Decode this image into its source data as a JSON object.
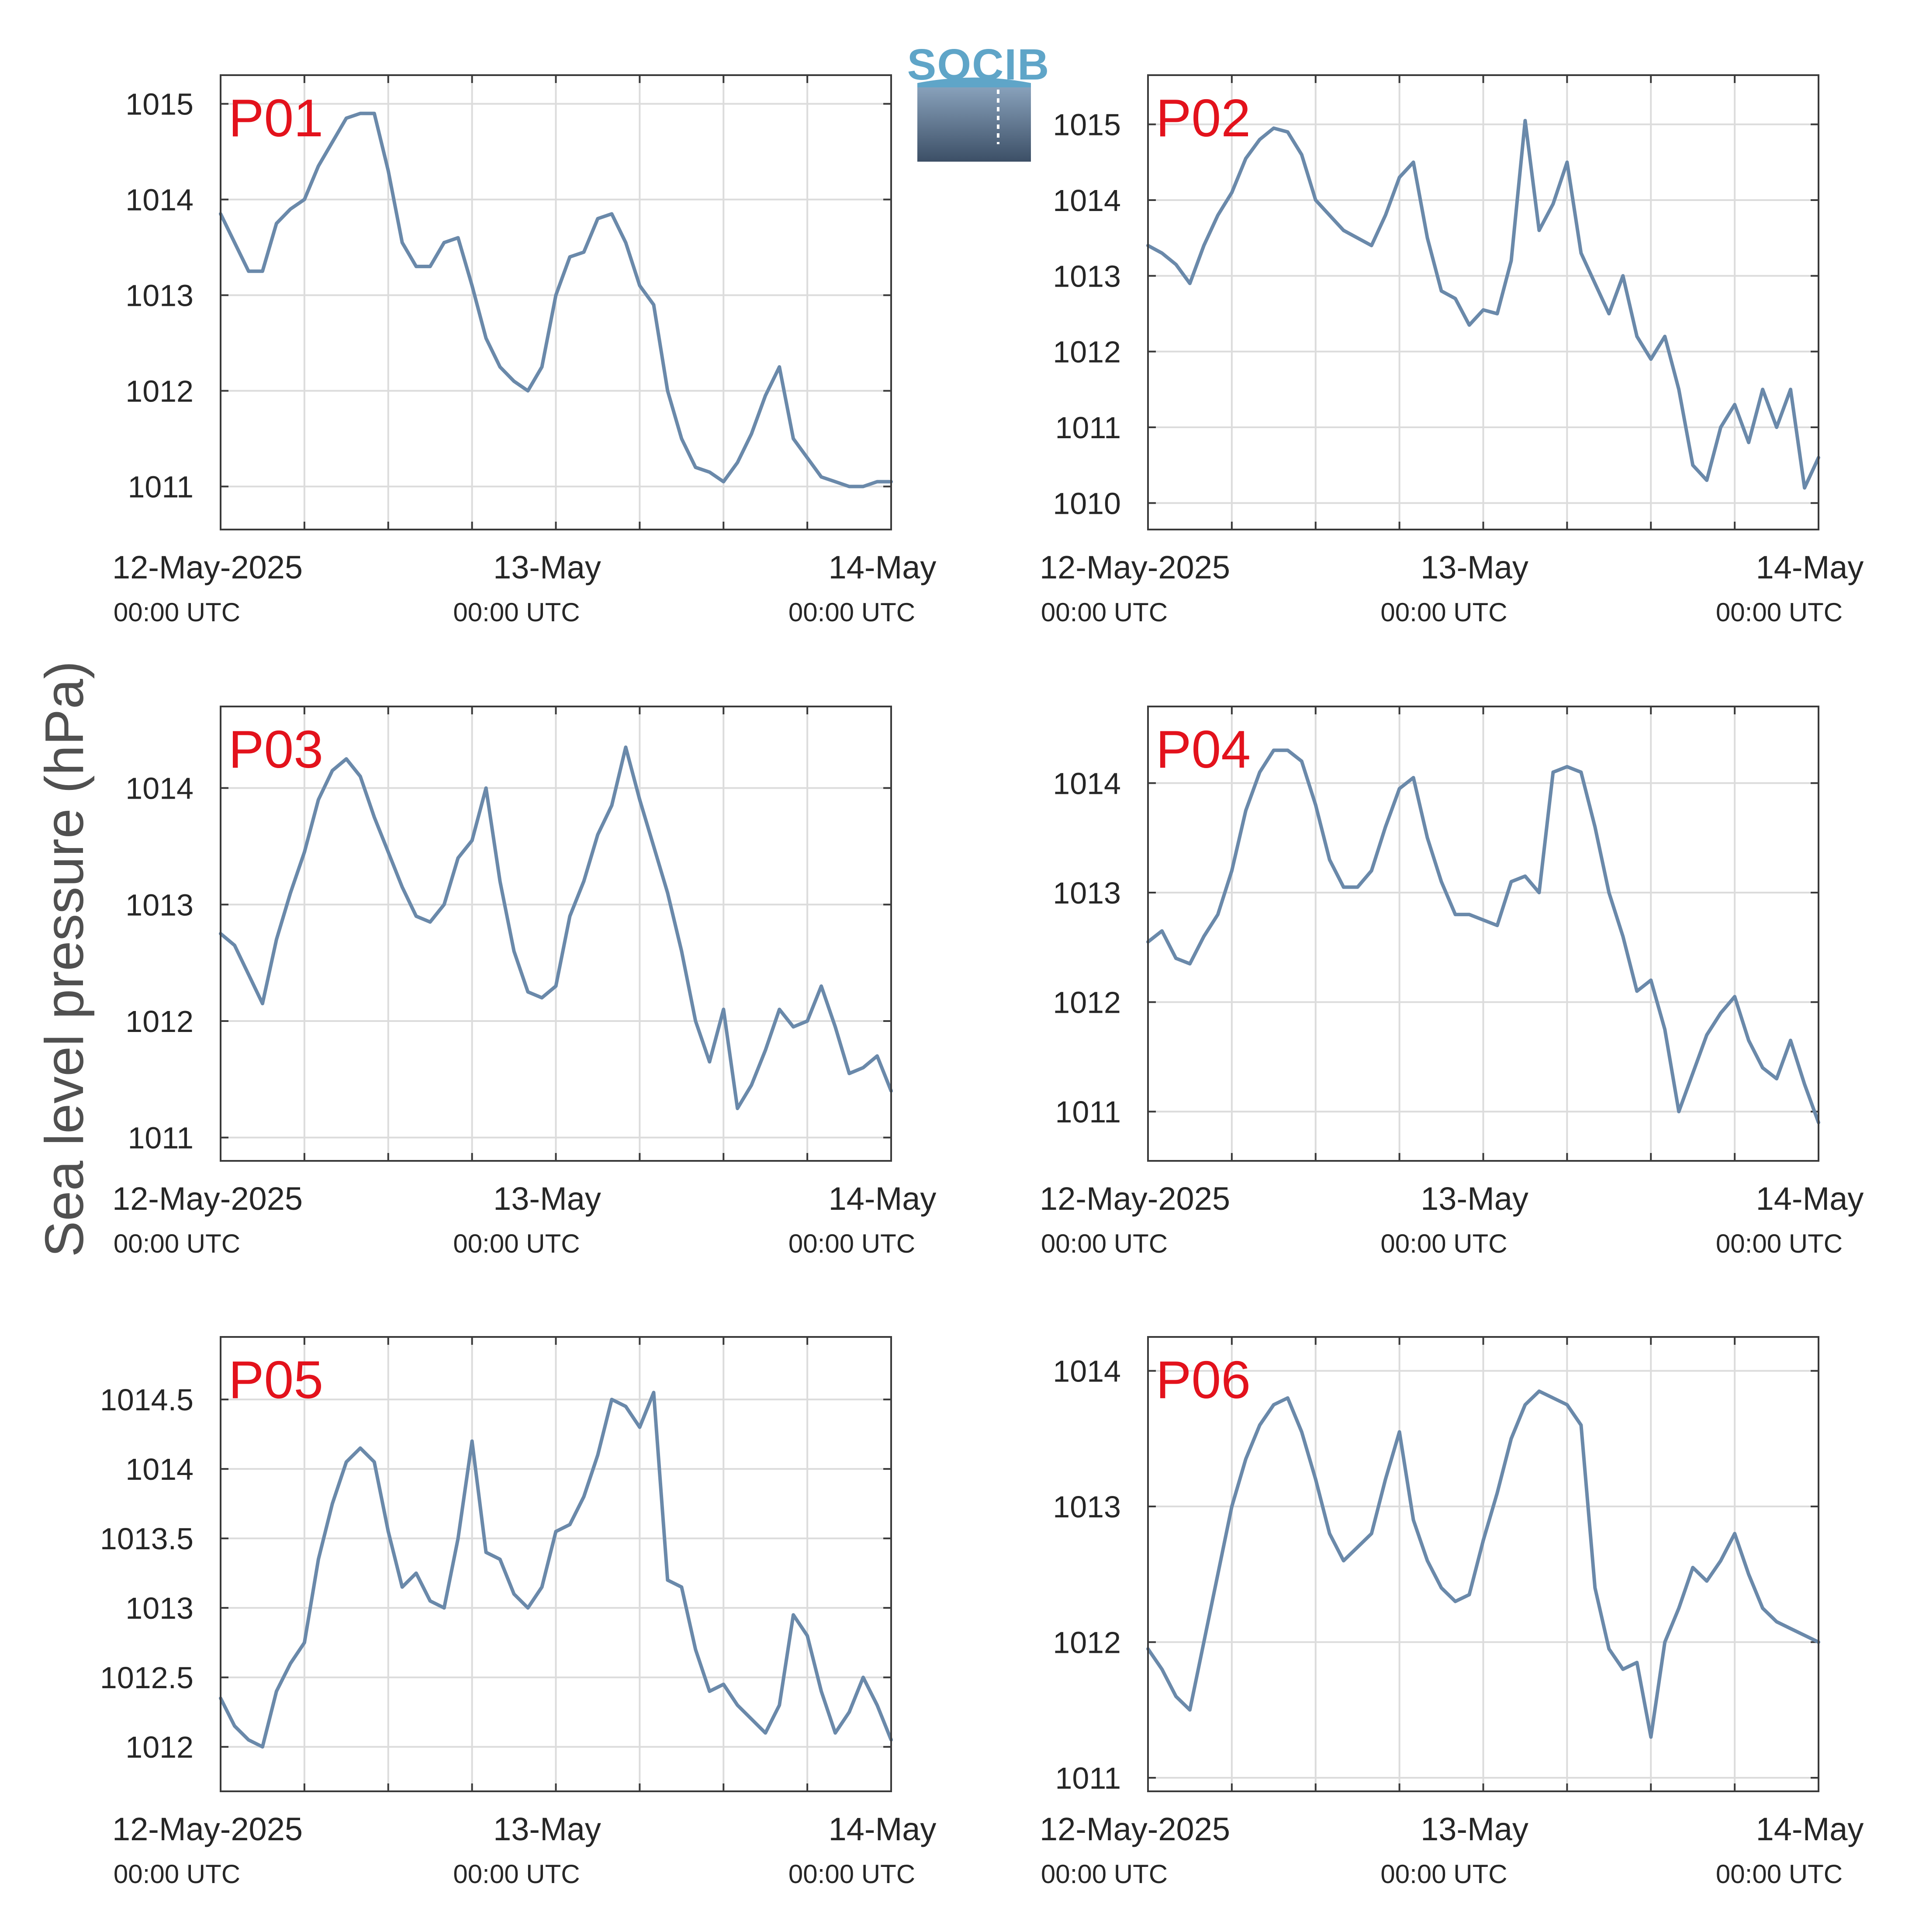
{
  "logo": {
    "text": "SOCIB"
  },
  "y_axis_label": "Sea level pressure (hPa)",
  "x_axis": {
    "tick_labels": [
      "12-May-2025",
      "13-May",
      "14-May"
    ],
    "tick_sublabels": [
      "00:00 UTC",
      "00:00 UTC",
      "00:00 UTC"
    ]
  },
  "colors": {
    "line": "#6a89aa",
    "panel_label": "#e3121c",
    "grid": "#dcdcdc",
    "axes": "#3a3a3a"
  },
  "chart_data": [
    {
      "type": "line",
      "panel_label": "P01",
      "xlim": [
        "12-May-2025 00:00 UTC",
        "14-May-2025 00:00 UTC"
      ],
      "ylim": [
        1010.55,
        1015.3
      ],
      "yticks": [
        1011,
        1012,
        1013,
        1014,
        1015
      ],
      "ytick_labels": [
        "1011",
        "1012",
        "1013",
        "1014",
        "1015"
      ],
      "grid": true,
      "series": [
        {
          "x_hours": [
            0,
            1,
            2,
            3,
            4,
            5,
            6,
            7,
            8,
            9,
            10,
            11,
            12,
            13,
            14,
            15,
            16,
            17,
            18,
            19,
            20,
            21,
            22,
            23,
            24,
            25,
            26,
            27,
            28,
            29,
            30,
            31,
            32,
            33,
            34,
            35,
            36,
            37,
            38,
            39,
            40,
            41,
            42,
            43,
            44,
            45,
            46,
            47,
            48
          ],
          "values": [
            1013.85,
            1013.55,
            1013.25,
            1013.25,
            1013.75,
            1013.9,
            1014.0,
            1014.35,
            1014.6,
            1014.85,
            1014.9,
            1014.9,
            1014.3,
            1013.55,
            1013.3,
            1013.3,
            1013.55,
            1013.6,
            1013.1,
            1012.55,
            1012.25,
            1012.1,
            1012.0,
            1012.25,
            1013.0,
            1013.4,
            1013.45,
            1013.8,
            1013.85,
            1013.55,
            1013.1,
            1012.9,
            1012.0,
            1011.5,
            1011.2,
            1011.15,
            1011.05,
            1011.25,
            1011.55,
            1011.95,
            1012.25,
            1011.5,
            1011.3,
            1011.1,
            1011.05,
            1011.0,
            1011.0,
            1011.05,
            1011.05
          ]
        }
      ]
    },
    {
      "type": "line",
      "panel_label": "P02",
      "xlim": [
        "12-May-2025 00:00 UTC",
        "14-May-2025 00:00 UTC"
      ],
      "ylim": [
        1009.65,
        1015.65
      ],
      "yticks": [
        1010,
        1011,
        1012,
        1013,
        1014,
        1015
      ],
      "ytick_labels": [
        "1010",
        "1011",
        "1012",
        "1013",
        "1014",
        "1015"
      ],
      "grid": true,
      "series": [
        {
          "x_hours": [
            0,
            1,
            2,
            3,
            4,
            5,
            6,
            7,
            8,
            9,
            10,
            11,
            12,
            13,
            14,
            15,
            16,
            17,
            18,
            19,
            20,
            21,
            22,
            23,
            24,
            25,
            26,
            27,
            28,
            29,
            30,
            31,
            32,
            33,
            34,
            35,
            36,
            37,
            38,
            39,
            40,
            41,
            42,
            43,
            44,
            45,
            46,
            47,
            48
          ],
          "values": [
            1013.4,
            1013.3,
            1013.15,
            1012.9,
            1013.4,
            1013.8,
            1014.1,
            1014.55,
            1014.8,
            1014.95,
            1014.9,
            1014.6,
            1014.0,
            1013.8,
            1013.6,
            1013.5,
            1013.4,
            1013.8,
            1014.3,
            1014.5,
            1013.5,
            1012.8,
            1012.7,
            1012.35,
            1012.55,
            1012.5,
            1013.2,
            1015.05,
            1013.6,
            1013.95,
            1014.5,
            1013.3,
            1012.9,
            1012.5,
            1013.0,
            1012.2,
            1011.9,
            1012.2,
            1011.5,
            1010.5,
            1010.3,
            1011.0,
            1011.3,
            1010.8,
            1011.5,
            1011.0,
            1011.5,
            1010.2,
            1010.6
          ]
        }
      ]
    },
    {
      "type": "line",
      "panel_label": "P03",
      "xlim": [
        "12-May-2025 00:00 UTC",
        "14-May-2025 00:00 UTC"
      ],
      "ylim": [
        1010.8,
        1014.7
      ],
      "yticks": [
        1011,
        1012,
        1013,
        1014
      ],
      "ytick_labels": [
        "1011",
        "1012",
        "1013",
        "1014"
      ],
      "grid": true,
      "series": [
        {
          "x_hours": [
            0,
            1,
            2,
            3,
            4,
            5,
            6,
            7,
            8,
            9,
            10,
            11,
            12,
            13,
            14,
            15,
            16,
            17,
            18,
            19,
            20,
            21,
            22,
            23,
            24,
            25,
            26,
            27,
            28,
            29,
            30,
            31,
            32,
            33,
            34,
            35,
            36,
            37,
            38,
            39,
            40,
            41,
            42,
            43,
            44,
            45,
            46,
            47,
            48
          ],
          "values": [
            1012.75,
            1012.65,
            1012.4,
            1012.15,
            1012.7,
            1013.1,
            1013.45,
            1013.9,
            1014.15,
            1014.25,
            1014.1,
            1013.75,
            1013.45,
            1013.15,
            1012.9,
            1012.85,
            1013.0,
            1013.4,
            1013.55,
            1014.0,
            1013.2,
            1012.6,
            1012.25,
            1012.2,
            1012.3,
            1012.9,
            1013.2,
            1013.6,
            1013.85,
            1014.35,
            1013.9,
            1013.5,
            1013.1,
            1012.6,
            1012.0,
            1011.65,
            1012.1,
            1011.25,
            1011.45,
            1011.75,
            1012.1,
            1011.95,
            1012.0,
            1012.3,
            1011.95,
            1011.55,
            1011.6,
            1011.7,
            1011.4
          ]
        }
      ]
    },
    {
      "type": "line",
      "panel_label": "P04",
      "xlim": [
        "12-May-2025 00:00 UTC",
        "14-May-2025 00:00 UTC"
      ],
      "ylim": [
        1010.55,
        1014.7
      ],
      "yticks": [
        1011,
        1012,
        1013,
        1014
      ],
      "ytick_labels": [
        "1011",
        "1012",
        "1013",
        "1014"
      ],
      "grid": true,
      "series": [
        {
          "x_hours": [
            0,
            1,
            2,
            3,
            4,
            5,
            6,
            7,
            8,
            9,
            10,
            11,
            12,
            13,
            14,
            15,
            16,
            17,
            18,
            19,
            20,
            21,
            22,
            23,
            24,
            25,
            26,
            27,
            28,
            29,
            30,
            31,
            32,
            33,
            34,
            35,
            36,
            37,
            38,
            39,
            40,
            41,
            42,
            43,
            44,
            45,
            46,
            47,
            48
          ],
          "values": [
            1012.55,
            1012.65,
            1012.4,
            1012.35,
            1012.6,
            1012.8,
            1013.2,
            1013.75,
            1014.1,
            1014.3,
            1014.3,
            1014.2,
            1013.8,
            1013.3,
            1013.05,
            1013.05,
            1013.2,
            1013.6,
            1013.95,
            1014.05,
            1013.5,
            1013.1,
            1012.8,
            1012.8,
            1012.75,
            1012.7,
            1013.1,
            1013.15,
            1013.0,
            1014.1,
            1014.15,
            1014.1,
            1013.6,
            1013.0,
            1012.6,
            1012.1,
            1012.2,
            1011.75,
            1011.0,
            1011.35,
            1011.7,
            1011.9,
            1012.05,
            1011.65,
            1011.4,
            1011.3,
            1011.65,
            1011.25,
            1010.9
          ]
        }
      ]
    },
    {
      "type": "line",
      "panel_label": "P05",
      "xlim": [
        "12-May-2025 00:00 UTC",
        "14-May-2025 00:00 UTC"
      ],
      "ylim": [
        1011.68,
        1014.95
      ],
      "yticks": [
        1012,
        1012.5,
        1013,
        1013.5,
        1014,
        1014.5
      ],
      "ytick_labels": [
        "1012",
        "1012.5",
        "1013",
        "1013.5",
        "1014",
        "1014.5"
      ],
      "grid": true,
      "series": [
        {
          "x_hours": [
            0,
            1,
            2,
            3,
            4,
            5,
            6,
            7,
            8,
            9,
            10,
            11,
            12,
            13,
            14,
            15,
            16,
            17,
            18,
            19,
            20,
            21,
            22,
            23,
            24,
            25,
            26,
            27,
            28,
            29,
            30,
            31,
            32,
            33,
            34,
            35,
            36,
            37,
            38,
            39,
            40,
            41,
            42,
            43,
            44,
            45,
            46,
            47,
            48
          ],
          "values": [
            1012.35,
            1012.15,
            1012.05,
            1012.0,
            1012.4,
            1012.6,
            1012.75,
            1013.35,
            1013.75,
            1014.05,
            1014.15,
            1014.05,
            1013.55,
            1013.15,
            1013.25,
            1013.05,
            1013.0,
            1013.5,
            1014.2,
            1013.4,
            1013.35,
            1013.1,
            1013.0,
            1013.15,
            1013.55,
            1013.6,
            1013.8,
            1014.1,
            1014.5,
            1014.45,
            1014.3,
            1014.55,
            1013.2,
            1013.15,
            1012.7,
            1012.4,
            1012.45,
            1012.3,
            1012.2,
            1012.1,
            1012.3,
            1012.95,
            1012.8,
            1012.4,
            1012.1,
            1012.25,
            1012.5,
            1012.3,
            1012.05
          ]
        }
      ]
    },
    {
      "type": "line",
      "panel_label": "P06",
      "xlim": [
        "12-May-2025 00:00 UTC",
        "14-May-2025 00:00 UTC"
      ],
      "ylim": [
        1010.9,
        1014.25
      ],
      "yticks": [
        1011,
        1012,
        1013,
        1014
      ],
      "ytick_labels": [
        "1011",
        "1012",
        "1013",
        "1014"
      ],
      "grid": true,
      "series": [
        {
          "x_hours": [
            0,
            1,
            2,
            3,
            4,
            5,
            6,
            7,
            8,
            9,
            10,
            11,
            12,
            13,
            14,
            15,
            16,
            17,
            18,
            19,
            20,
            21,
            22,
            23,
            24,
            25,
            26,
            27,
            28,
            29,
            30,
            31,
            32,
            33,
            34,
            35,
            36,
            37,
            38,
            39,
            40,
            41,
            42,
            43,
            44,
            45,
            46,
            47,
            48
          ],
          "values": [
            1011.95,
            1011.8,
            1011.6,
            1011.5,
            1012.0,
            1012.5,
            1013.0,
            1013.35,
            1013.6,
            1013.75,
            1013.8,
            1013.55,
            1013.2,
            1012.8,
            1012.6,
            1012.7,
            1012.8,
            1013.2,
            1013.55,
            1012.9,
            1012.6,
            1012.4,
            1012.3,
            1012.35,
            1012.75,
            1013.1,
            1013.5,
            1013.75,
            1013.85,
            1013.8,
            1013.75,
            1013.6,
            1012.4,
            1011.95,
            1011.8,
            1011.85,
            1011.3,
            1012.0,
            1012.25,
            1012.55,
            1012.45,
            1012.6,
            1012.8,
            1012.5,
            1012.25,
            1012.15,
            1012.1,
            1012.05,
            1012.0
          ]
        }
      ]
    }
  ]
}
